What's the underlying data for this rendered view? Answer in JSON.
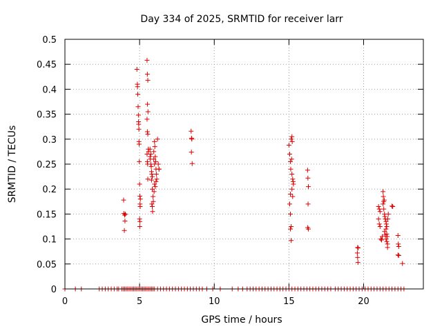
{
  "chart_data": {
    "type": "scatter",
    "title": "Day 334 of 2025, SRMTID for receiver larr",
    "xlabel": "GPS time / hours",
    "ylabel": "SRMTID / TECUs",
    "xlim": [
      0,
      24
    ],
    "ylim": [
      0,
      0.5
    ],
    "xticks": [
      0,
      5,
      10,
      15,
      20
    ],
    "yticks": [
      0,
      0.05,
      0.1,
      0.15,
      0.2,
      0.25,
      0.3,
      0.35,
      0.4,
      0.45,
      0.5
    ],
    "ytick_labels": [
      "0",
      "0.05",
      "0.1",
      "0.15",
      "0.2",
      "0.25",
      "0.3",
      "0.35",
      "0.4",
      "0.45",
      "0.5"
    ],
    "grid": true,
    "marker": "+",
    "color": "#dd0000",
    "series": [
      {
        "name": "SRMTID",
        "points": [
          [
            0.0,
            0
          ],
          [
            0.7,
            0
          ],
          [
            1.1,
            0
          ],
          [
            2.3,
            0
          ],
          [
            2.5,
            0
          ],
          [
            2.7,
            0
          ],
          [
            2.9,
            0
          ],
          [
            3.1,
            0
          ],
          [
            3.3,
            0
          ],
          [
            3.5,
            0
          ],
          [
            3.6,
            0
          ],
          [
            3.8,
            0
          ],
          [
            3.9,
            0
          ],
          [
            4.0,
            0
          ],
          [
            4.1,
            0
          ],
          [
            4.2,
            0
          ],
          [
            4.3,
            0
          ],
          [
            4.4,
            0
          ],
          [
            4.5,
            0
          ],
          [
            4.6,
            0
          ],
          [
            4.7,
            0
          ],
          [
            4.8,
            0
          ],
          [
            4.9,
            0
          ],
          [
            5.0,
            0
          ],
          [
            5.1,
            0
          ],
          [
            5.2,
            0
          ],
          [
            5.3,
            0
          ],
          [
            5.4,
            0
          ],
          [
            5.5,
            0
          ],
          [
            5.6,
            0
          ],
          [
            5.7,
            0
          ],
          [
            5.8,
            0
          ],
          [
            5.9,
            0
          ],
          [
            6.0,
            0
          ],
          [
            6.2,
            0
          ],
          [
            6.4,
            0
          ],
          [
            6.6,
            0
          ],
          [
            6.8,
            0
          ],
          [
            7.0,
            0
          ],
          [
            7.2,
            0
          ],
          [
            7.4,
            0
          ],
          [
            7.6,
            0
          ],
          [
            7.8,
            0
          ],
          [
            8.0,
            0
          ],
          [
            8.2,
            0
          ],
          [
            8.4,
            0
          ],
          [
            8.6,
            0
          ],
          [
            8.8,
            0
          ],
          [
            9.0,
            0
          ],
          [
            9.2,
            0
          ],
          [
            9.5,
            0
          ],
          [
            9.9,
            0
          ],
          [
            10.4,
            0
          ],
          [
            11.2,
            0
          ],
          [
            11.6,
            0
          ],
          [
            11.9,
            0
          ],
          [
            12.2,
            0
          ],
          [
            12.4,
            0
          ],
          [
            12.6,
            0
          ],
          [
            12.8,
            0
          ],
          [
            13.0,
            0
          ],
          [
            13.2,
            0
          ],
          [
            13.4,
            0
          ],
          [
            13.6,
            0
          ],
          [
            13.8,
            0
          ],
          [
            14.0,
            0
          ],
          [
            14.2,
            0
          ],
          [
            14.4,
            0
          ],
          [
            14.6,
            0
          ],
          [
            14.8,
            0
          ],
          [
            15.0,
            0
          ],
          [
            15.2,
            0
          ],
          [
            15.4,
            0
          ],
          [
            15.6,
            0
          ],
          [
            15.8,
            0
          ],
          [
            16.0,
            0
          ],
          [
            16.2,
            0
          ],
          [
            16.4,
            0
          ],
          [
            16.6,
            0
          ],
          [
            16.8,
            0
          ],
          [
            17.0,
            0
          ],
          [
            17.2,
            0
          ],
          [
            17.4,
            0
          ],
          [
            17.6,
            0
          ],
          [
            17.8,
            0
          ],
          [
            18.1,
            0
          ],
          [
            18.3,
            0
          ],
          [
            18.5,
            0
          ],
          [
            18.7,
            0
          ],
          [
            18.9,
            0
          ],
          [
            19.1,
            0
          ],
          [
            19.3,
            0
          ],
          [
            19.5,
            0
          ],
          [
            19.7,
            0
          ],
          [
            19.9,
            0
          ],
          [
            20.1,
            0
          ],
          [
            20.3,
            0
          ],
          [
            20.5,
            0
          ],
          [
            20.7,
            0
          ],
          [
            20.9,
            0
          ],
          [
            21.1,
            0
          ],
          [
            21.3,
            0
          ],
          [
            21.5,
            0
          ],
          [
            21.7,
            0
          ],
          [
            21.9,
            0
          ],
          [
            22.1,
            0
          ],
          [
            22.3,
            0
          ],
          [
            22.5,
            0
          ],
          [
            22.7,
            0
          ],
          [
            3.93,
            0.178
          ],
          [
            3.95,
            0.151
          ],
          [
            4.0,
            0.148
          ],
          [
            4.02,
            0.136
          ],
          [
            3.98,
            0.117
          ],
          [
            4.05,
            0.15
          ],
          [
            4.82,
            0.44
          ],
          [
            4.85,
            0.41
          ],
          [
            4.86,
            0.405
          ],
          [
            4.88,
            0.39
          ],
          [
            4.9,
            0.365
          ],
          [
            4.92,
            0.348
          ],
          [
            4.93,
            0.335
          ],
          [
            4.94,
            0.33
          ],
          [
            4.95,
            0.32
          ],
          [
            4.96,
            0.295
          ],
          [
            4.97,
            0.29
          ],
          [
            4.98,
            0.255
          ],
          [
            5.0,
            0.21
          ],
          [
            5.02,
            0.186
          ],
          [
            5.03,
            0.17
          ],
          [
            5.04,
            0.165
          ],
          [
            5.0,
            0.14
          ],
          [
            5.02,
            0.135
          ],
          [
            5.01,
            0.125
          ],
          [
            5.05,
            0.18
          ],
          [
            5.5,
            0.458
          ],
          [
            5.52,
            0.43
          ],
          [
            5.55,
            0.418
          ],
          [
            5.53,
            0.37
          ],
          [
            5.56,
            0.355
          ],
          [
            5.5,
            0.34
          ],
          [
            5.52,
            0.315
          ],
          [
            5.55,
            0.31
          ],
          [
            5.58,
            0.28
          ],
          [
            5.5,
            0.27
          ],
          [
            5.52,
            0.255
          ],
          [
            5.54,
            0.25
          ],
          [
            5.55,
            0.22
          ],
          [
            5.6,
            0.275
          ],
          [
            5.7,
            0.265
          ],
          [
            5.72,
            0.26
          ],
          [
            5.75,
            0.25
          ],
          [
            5.78,
            0.245
          ],
          [
            5.8,
            0.235
          ],
          [
            5.82,
            0.23
          ],
          [
            5.85,
            0.225
          ],
          [
            5.7,
            0.28
          ],
          [
            5.75,
            0.27
          ],
          [
            5.8,
            0.218
          ],
          [
            5.85,
            0.2
          ],
          [
            5.9,
            0.185
          ],
          [
            5.82,
            0.17
          ],
          [
            5.85,
            0.165
          ],
          [
            5.87,
            0.155
          ],
          [
            5.92,
            0.175
          ],
          [
            5.95,
            0.275
          ],
          [
            6.0,
            0.295
          ],
          [
            6.02,
            0.285
          ],
          [
            6.05,
            0.265
          ],
          [
            6.08,
            0.255
          ],
          [
            6.1,
            0.24
          ],
          [
            6.12,
            0.23
          ],
          [
            6.15,
            0.22
          ],
          [
            6.0,
            0.21
          ],
          [
            6.05,
            0.205
          ],
          [
            6.1,
            0.215
          ],
          [
            6.2,
            0.3
          ],
          [
            6.25,
            0.25
          ],
          [
            6.3,
            0.24
          ],
          [
            6.3,
            0.24
          ],
          [
            5.95,
            0.26
          ],
          [
            6.0,
            0.25
          ],
          [
            5.97,
            0.195
          ],
          [
            8.45,
            0.316
          ],
          [
            8.48,
            0.302
          ],
          [
            8.5,
            0.3
          ],
          [
            8.47,
            0.274
          ],
          [
            8.52,
            0.251
          ],
          [
            15.0,
            0.288
          ],
          [
            15.05,
            0.27
          ],
          [
            15.1,
            0.255
          ],
          [
            15.12,
            0.24
          ],
          [
            15.15,
            0.3
          ],
          [
            15.2,
            0.305
          ],
          [
            15.22,
            0.295
          ],
          [
            15.18,
            0.26
          ],
          [
            15.2,
            0.23
          ],
          [
            15.25,
            0.22
          ],
          [
            15.3,
            0.21
          ],
          [
            15.1,
            0.19
          ],
          [
            15.05,
            0.17
          ],
          [
            15.1,
            0.15
          ],
          [
            15.15,
            0.125
          ],
          [
            15.1,
            0.12
          ],
          [
            15.15,
            0.097
          ],
          [
            15.2,
            0.2
          ],
          [
            15.25,
            0.185
          ],
          [
            15.28,
            0.215
          ],
          [
            16.25,
            0.238
          ],
          [
            16.27,
            0.222
          ],
          [
            16.3,
            0.205
          ],
          [
            16.28,
            0.17
          ],
          [
            16.26,
            0.123
          ],
          [
            16.3,
            0.12
          ],
          [
            19.6,
            0.083
          ],
          [
            19.63,
            0.082
          ],
          [
            19.58,
            0.072
          ],
          [
            19.6,
            0.063
          ],
          [
            19.62,
            0.053
          ],
          [
            21.0,
            0.165
          ],
          [
            21.05,
            0.16
          ],
          [
            21.1,
            0.155
          ],
          [
            21.0,
            0.14
          ],
          [
            21.05,
            0.13
          ],
          [
            21.1,
            0.125
          ],
          [
            21.15,
            0.1
          ],
          [
            21.2,
            0.098
          ],
          [
            21.25,
            0.105
          ],
          [
            21.3,
            0.195
          ],
          [
            21.32,
            0.185
          ],
          [
            21.35,
            0.175
          ],
          [
            21.38,
            0.178
          ],
          [
            21.3,
            0.17
          ],
          [
            21.35,
            0.16
          ],
          [
            21.4,
            0.15
          ],
          [
            21.42,
            0.145
          ],
          [
            21.45,
            0.14
          ],
          [
            21.5,
            0.135
          ],
          [
            21.52,
            0.13
          ],
          [
            21.55,
            0.125
          ],
          [
            21.5,
            0.12
          ],
          [
            21.55,
            0.11
          ],
          [
            21.58,
            0.105
          ],
          [
            21.5,
            0.1
          ],
          [
            21.55,
            0.095
          ],
          [
            21.6,
            0.09
          ],
          [
            21.6,
            0.083
          ],
          [
            21.62,
            0.14
          ],
          [
            21.65,
            0.15
          ],
          [
            21.4,
            0.115
          ],
          [
            21.45,
            0.108
          ],
          [
            21.9,
            0.166
          ],
          [
            21.95,
            0.165
          ],
          [
            22.3,
            0.107
          ],
          [
            22.32,
            0.09
          ],
          [
            22.35,
            0.085
          ],
          [
            22.3,
            0.068
          ],
          [
            22.35,
            0.067
          ],
          [
            22.6,
            0.051
          ]
        ]
      }
    ]
  }
}
